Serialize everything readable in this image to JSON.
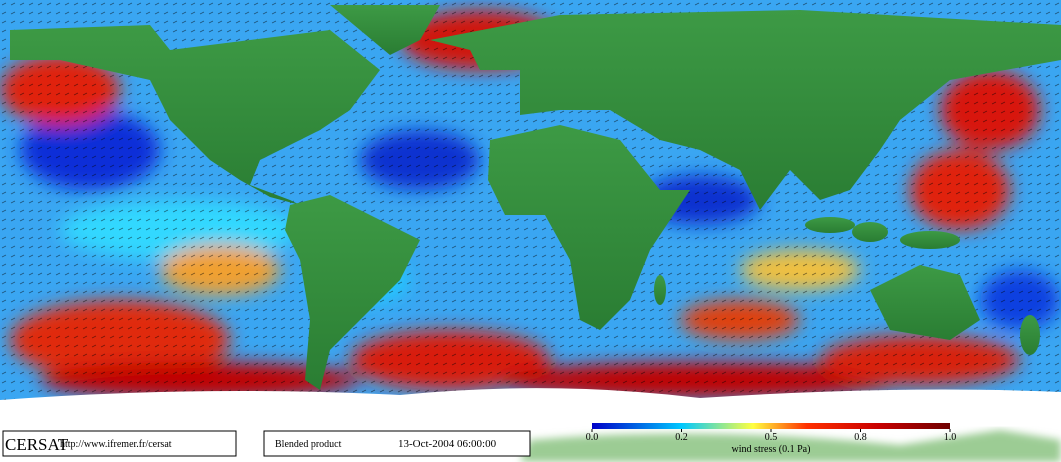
{
  "logo": "CERSAT",
  "url": "http://www.ifremer.fr/cersat",
  "product": "Blended product",
  "timestamp": "13-Oct-2004 06:00:00",
  "colorbar": {
    "ticks": [
      {
        "value": 0,
        "label": "0.0"
      },
      0.2,
      0.5,
      0.8,
      {
        "value": 1,
        "label": "1.0"
      }
    ],
    "label": "wind stress (0.1 Pa)"
  }
}
